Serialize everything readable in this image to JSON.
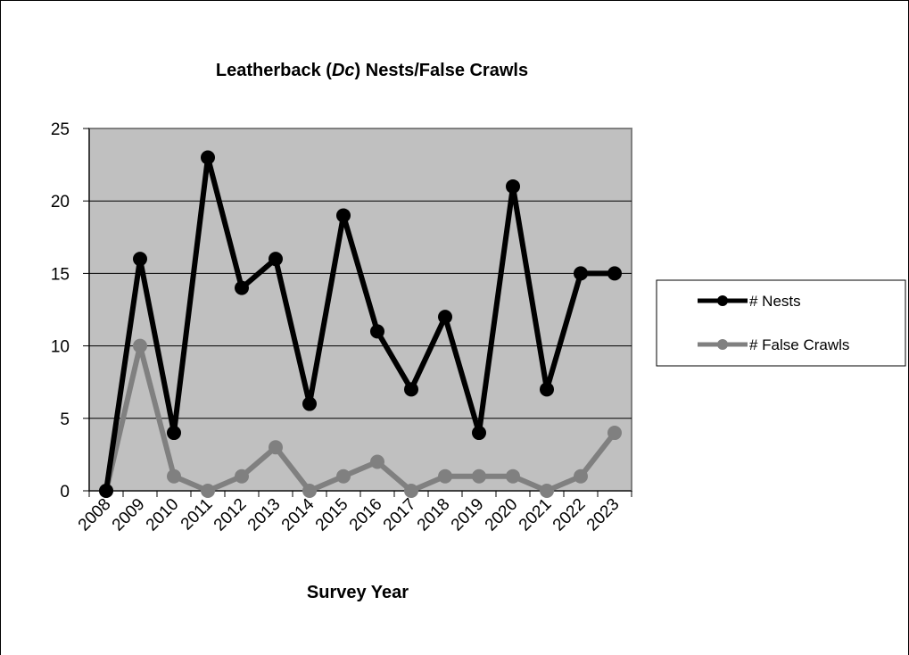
{
  "chart_data": {
    "type": "line",
    "title_prefix": "Leatherback (",
    "title_italic": "Dc",
    "title_suffix": ") Nests/False Crawls",
    "xlabel": "Survey Year",
    "ylabel": "",
    "categories": [
      "2008",
      "2009",
      "2010",
      "2011",
      "2012",
      "2013",
      "2014",
      "2015",
      "2016",
      "2017",
      "2018",
      "2019",
      "2020",
      "2021",
      "2022",
      "2023"
    ],
    "ylim": [
      0,
      25
    ],
    "yticks": [
      0,
      5,
      10,
      15,
      20,
      25
    ],
    "grid": true,
    "legend_position": "right",
    "plot_background": "#c0c0c0",
    "series": [
      {
        "name": "# Nests",
        "color": "#000000",
        "values": [
          0,
          16,
          4,
          23,
          14,
          16,
          6,
          19,
          11,
          7,
          12,
          4,
          21,
          7,
          15,
          15
        ]
      },
      {
        "name": "# False Crawls",
        "color": "#808080",
        "values": [
          0,
          10,
          1,
          0,
          1,
          3,
          0,
          1,
          2,
          0,
          1,
          1,
          1,
          0,
          1,
          4
        ]
      }
    ]
  }
}
